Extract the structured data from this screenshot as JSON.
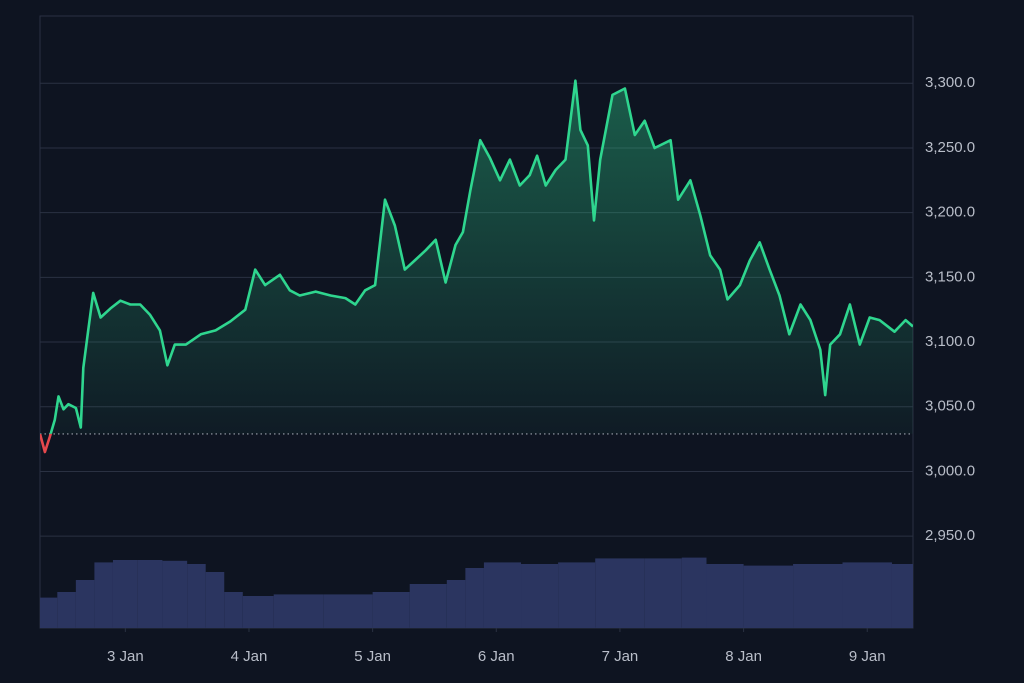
{
  "chart_data": {
    "type": "line",
    "xlim": [
      2.31,
      9.37
    ],
    "xticks": [
      {
        "value": 3,
        "label": "3 Jan"
      },
      {
        "value": 4,
        "label": "4 Jan"
      },
      {
        "value": 5,
        "label": "5 Jan"
      },
      {
        "value": 6,
        "label": "6 Jan"
      },
      {
        "value": 7,
        "label": "7 Jan"
      },
      {
        "value": 8,
        "label": "8 Jan"
      },
      {
        "value": 9,
        "label": "9 Jan"
      }
    ],
    "ylim": [
      2879,
      3352
    ],
    "yticks": [
      {
        "value": 2950,
        "label": "2,950.0"
      },
      {
        "value": 3000,
        "label": "3,000.0"
      },
      {
        "value": 3050,
        "label": "3,050.0"
      },
      {
        "value": 3100,
        "label": "3,100.0"
      },
      {
        "value": 3150,
        "label": "3,150.0"
      },
      {
        "value": 3200,
        "label": "3,200.0"
      },
      {
        "value": 3250,
        "label": "3,250.0"
      },
      {
        "value": 3300,
        "label": "3,300.0"
      }
    ],
    "grid": true,
    "baseline": 3029,
    "color": "#2fd68f",
    "below_color": "#e5484d",
    "x": [
      2.31,
      2.35,
      2.39,
      2.43,
      2.46,
      2.5,
      2.54,
      2.6,
      2.64,
      2.66,
      2.7,
      2.74,
      2.8,
      2.88,
      2.96,
      3.04,
      3.12,
      3.2,
      3.28,
      3.34,
      3.4,
      3.49,
      3.61,
      3.73,
      3.85,
      3.97,
      4.05,
      4.13,
      4.25,
      4.33,
      4.41,
      4.54,
      4.66,
      4.78,
      4.86,
      4.94,
      5.02,
      5.1,
      5.18,
      5.26,
      5.34,
      5.43,
      5.51,
      5.59,
      5.67,
      5.73,
      5.79,
      5.87,
      5.95,
      6.03,
      6.11,
      6.19,
      6.27,
      6.33,
      6.4,
      6.48,
      6.56,
      6.64,
      6.68,
      6.74,
      6.79,
      6.84,
      6.94,
      7.04,
      7.12,
      7.2,
      7.28,
      7.41,
      7.47,
      7.57,
      7.65,
      7.73,
      7.81,
      7.87,
      7.97,
      8.05,
      8.13,
      8.21,
      8.29,
      8.37,
      8.46,
      8.54,
      8.62,
      8.66,
      8.7,
      8.78,
      8.86,
      8.94,
      9.02,
      9.1,
      9.22,
      9.31,
      9.37
    ],
    "values": [
      3029,
      3015,
      3027,
      3040,
      3058,
      3048,
      3052,
      3049,
      3034,
      3080,
      3109,
      3138,
      3119,
      3126,
      3132,
      3129,
      3129,
      3121,
      3109,
      3082,
      3098,
      3098,
      3106,
      3109,
      3116,
      3125,
      3156,
      3144,
      3152,
      3140,
      3136,
      3139,
      3136,
      3134,
      3129,
      3140,
      3144,
      3210,
      3190,
      3156,
      3163,
      3171,
      3179,
      3146,
      3175,
      3185,
      3217,
      3256,
      3242,
      3225,
      3241,
      3221,
      3229,
      3244,
      3221,
      3233,
      3241,
      3302,
      3264,
      3252,
      3194,
      3241,
      3291,
      3296,
      3260,
      3271,
      3250,
      3256,
      3210,
      3225,
      3198,
      3167,
      3156,
      3133,
      3144,
      3163,
      3177,
      3156,
      3136,
      3106,
      3129,
      3117,
      3094,
      3059,
      3098,
      3106,
      3129,
      3098,
      3119,
      3117,
      3108,
      3117,
      3112
    ],
    "volume": {
      "color": "#2b3560",
      "vlim": [
        0,
        100
      ],
      "x": [
        2.31,
        2.45,
        2.6,
        2.75,
        2.9,
        3.1,
        3.3,
        3.5,
        3.65,
        3.8,
        3.95,
        4.2,
        4.6,
        5.0,
        5.3,
        5.6,
        5.75,
        5.9,
        6.2,
        6.5,
        6.8,
        7.2,
        7.5,
        7.7,
        8.0,
        8.4,
        8.8,
        9.2
      ],
      "values": [
        38,
        45,
        60,
        82,
        85,
        85,
        84,
        80,
        70,
        45,
        40,
        42,
        42,
        45,
        55,
        60,
        75,
        82,
        80,
        82,
        87,
        87,
        88,
        80,
        78,
        80,
        82,
        80
      ]
    }
  }
}
